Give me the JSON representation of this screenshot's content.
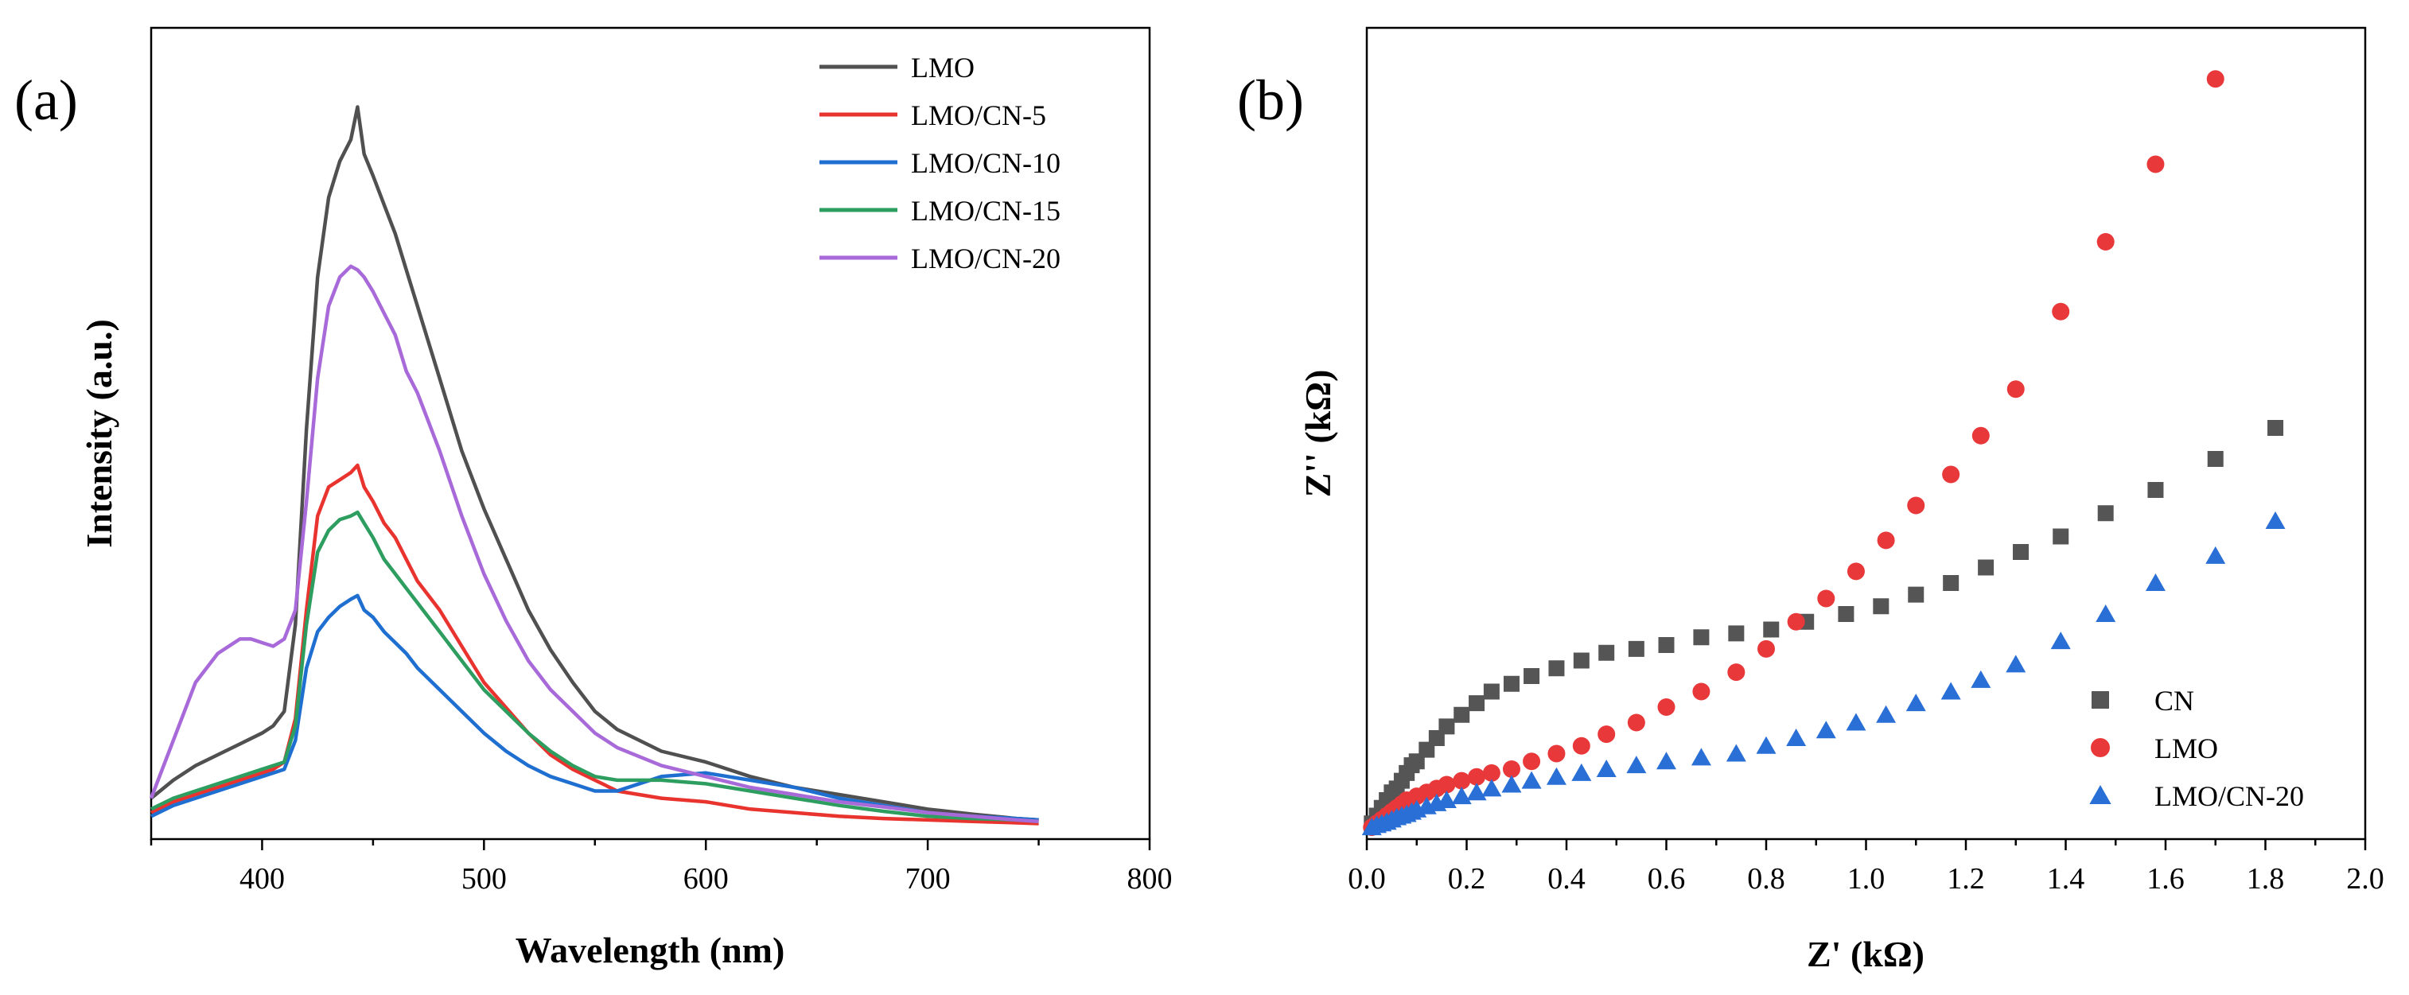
{
  "chart_data": [
    {
      "panel": "(a)",
      "type": "line",
      "xlabel": "Wavelength (nm)",
      "ylabel": "Intensity (a.u.)",
      "xlim": [
        350,
        800
      ],
      "ylim": [
        0,
        1
      ],
      "xticks": [
        400,
        500,
        600,
        700,
        800
      ],
      "yticks_shown": false,
      "legend": "top-right",
      "series": [
        {
          "name": "LMO",
          "color": "#505050",
          "x": [
            350,
            360,
            370,
            380,
            390,
            400,
            405,
            410,
            415,
            420,
            425,
            430,
            435,
            440,
            443,
            446,
            450,
            455,
            460,
            465,
            470,
            480,
            490,
            500,
            510,
            520,
            530,
            540,
            550,
            560,
            580,
            600,
            620,
            640,
            660,
            680,
            700,
            720,
            740,
            750
          ],
          "y": [
            0.04,
            0.065,
            0.085,
            0.1,
            0.115,
            0.13,
            0.14,
            0.16,
            0.28,
            0.55,
            0.76,
            0.87,
            0.92,
            0.95,
            0.995,
            0.93,
            0.9,
            0.86,
            0.82,
            0.77,
            0.72,
            0.62,
            0.52,
            0.44,
            0.37,
            0.3,
            0.245,
            0.2,
            0.16,
            0.135,
            0.105,
            0.09,
            0.07,
            0.055,
            0.045,
            0.035,
            0.025,
            0.018,
            0.012,
            0.01
          ]
        },
        {
          "name": "LMO/CN-5",
          "color": "#e8332f",
          "x": [
            350,
            360,
            370,
            380,
            390,
            400,
            405,
            410,
            415,
            420,
            425,
            430,
            435,
            440,
            443,
            446,
            450,
            455,
            460,
            465,
            470,
            480,
            490,
            500,
            510,
            520,
            530,
            540,
            550,
            560,
            580,
            600,
            620,
            640,
            660,
            680,
            700,
            720,
            740,
            750
          ],
          "y": [
            0.02,
            0.035,
            0.045,
            0.055,
            0.065,
            0.075,
            0.08,
            0.09,
            0.15,
            0.3,
            0.43,
            0.47,
            0.48,
            0.49,
            0.5,
            0.47,
            0.45,
            0.42,
            0.4,
            0.37,
            0.34,
            0.3,
            0.25,
            0.2,
            0.165,
            0.13,
            0.1,
            0.08,
            0.065,
            0.05,
            0.04,
            0.035,
            0.025,
            0.02,
            0.015,
            0.012,
            0.01,
            0.008,
            0.006,
            0.005
          ]
        },
        {
          "name": "LMO/CN-10",
          "color": "#1f6fd1",
          "x": [
            350,
            360,
            370,
            380,
            390,
            400,
            405,
            410,
            415,
            420,
            425,
            430,
            435,
            440,
            443,
            446,
            450,
            455,
            460,
            465,
            470,
            480,
            490,
            500,
            510,
            520,
            530,
            540,
            550,
            560,
            580,
            600,
            620,
            640,
            660,
            680,
            700,
            720,
            740,
            750
          ],
          "y": [
            0.015,
            0.03,
            0.04,
            0.05,
            0.06,
            0.07,
            0.075,
            0.08,
            0.12,
            0.22,
            0.27,
            0.29,
            0.305,
            0.315,
            0.32,
            0.3,
            0.29,
            0.27,
            0.255,
            0.24,
            0.22,
            0.19,
            0.16,
            0.13,
            0.105,
            0.085,
            0.07,
            0.06,
            0.05,
            0.05,
            0.07,
            0.075,
            0.065,
            0.055,
            0.04,
            0.03,
            0.02,
            0.015,
            0.012,
            0.01
          ]
        },
        {
          "name": "LMO/CN-15",
          "color": "#2e9e60",
          "x": [
            350,
            360,
            370,
            380,
            390,
            400,
            405,
            410,
            415,
            420,
            425,
            430,
            435,
            440,
            443,
            446,
            450,
            455,
            460,
            465,
            470,
            480,
            490,
            500,
            510,
            520,
            530,
            540,
            550,
            560,
            580,
            600,
            620,
            640,
            660,
            680,
            700,
            720,
            740,
            750
          ],
          "y": [
            0.025,
            0.04,
            0.05,
            0.06,
            0.07,
            0.08,
            0.085,
            0.09,
            0.14,
            0.28,
            0.38,
            0.41,
            0.425,
            0.43,
            0.435,
            0.42,
            0.4,
            0.37,
            0.35,
            0.33,
            0.31,
            0.27,
            0.23,
            0.19,
            0.16,
            0.13,
            0.105,
            0.085,
            0.07,
            0.065,
            0.065,
            0.06,
            0.05,
            0.04,
            0.03,
            0.022,
            0.015,
            0.012,
            0.01,
            0.008
          ]
        },
        {
          "name": "LMO/CN-20",
          "color": "#a86ad9",
          "x": [
            350,
            360,
            370,
            380,
            390,
            395,
            400,
            405,
            410,
            415,
            420,
            425,
            430,
            435,
            440,
            443,
            446,
            450,
            455,
            460,
            465,
            470,
            480,
            490,
            500,
            510,
            520,
            530,
            540,
            550,
            560,
            580,
            600,
            620,
            640,
            660,
            680,
            700,
            720,
            740,
            750
          ],
          "y": [
            0.04,
            0.12,
            0.2,
            0.24,
            0.26,
            0.26,
            0.255,
            0.25,
            0.26,
            0.3,
            0.45,
            0.62,
            0.72,
            0.76,
            0.775,
            0.77,
            0.76,
            0.74,
            0.71,
            0.68,
            0.63,
            0.6,
            0.52,
            0.43,
            0.35,
            0.285,
            0.23,
            0.19,
            0.16,
            0.13,
            0.11,
            0.085,
            0.07,
            0.055,
            0.045,
            0.035,
            0.028,
            0.02,
            0.015,
            0.01,
            0.008
          ]
        }
      ],
      "legend_entries": [
        "LMO",
        "LMO/CN-5",
        "LMO/CN-10",
        "LMO/CN-15",
        "LMO/CN-20"
      ]
    },
    {
      "panel": "(b)",
      "type": "scatter",
      "xlabel": "Z' (kΩ)",
      "ylabel": "Z'' (kΩ)",
      "xlim": [
        0.0,
        2.0
      ],
      "ylim": [
        0,
        1
      ],
      "xticks": [
        "0.0",
        "0.2",
        "0.4",
        "0.6",
        "0.8",
        "1.0",
        "1.2",
        "1.4",
        "1.6",
        "1.8",
        "2.0"
      ],
      "yticks_shown": false,
      "legend": "bottom-right",
      "series": [
        {
          "name": "CN",
          "color": "#555555",
          "marker": "square",
          "x": [
            0.01,
            0.02,
            0.03,
            0.04,
            0.05,
            0.06,
            0.07,
            0.08,
            0.09,
            0.1,
            0.12,
            0.14,
            0.16,
            0.19,
            0.22,
            0.25,
            0.29,
            0.33,
            0.38,
            0.43,
            0.48,
            0.54,
            0.6,
            0.67,
            0.74,
            0.81,
            0.88,
            0.96,
            1.03,
            1.1,
            1.17,
            1.24,
            1.31,
            1.39,
            1.48,
            1.58,
            1.7,
            1.82
          ],
          "y": [
            0.01,
            0.02,
            0.03,
            0.04,
            0.05,
            0.055,
            0.065,
            0.075,
            0.085,
            0.09,
            0.105,
            0.12,
            0.135,
            0.15,
            0.165,
            0.18,
            0.19,
            0.2,
            0.21,
            0.22,
            0.23,
            0.235,
            0.24,
            0.25,
            0.255,
            0.26,
            0.27,
            0.28,
            0.29,
            0.305,
            0.32,
            0.34,
            0.36,
            0.38,
            0.41,
            0.44,
            0.48,
            0.52
          ]
        },
        {
          "name": "LMO",
          "color": "#e8383a",
          "marker": "circle",
          "x": [
            0.01,
            0.02,
            0.03,
            0.04,
            0.05,
            0.06,
            0.07,
            0.08,
            0.09,
            0.1,
            0.12,
            0.14,
            0.16,
            0.19,
            0.22,
            0.25,
            0.29,
            0.33,
            0.38,
            0.43,
            0.48,
            0.54,
            0.6,
            0.67,
            0.74,
            0.8,
            0.86,
            0.92,
            0.98,
            1.04,
            1.1,
            1.17,
            1.23,
            1.3,
            1.39,
            1.48,
            1.58,
            1.7
          ],
          "y": [
            0.005,
            0.01,
            0.015,
            0.02,
            0.025,
            0.03,
            0.035,
            0.04,
            0.04,
            0.045,
            0.05,
            0.055,
            0.06,
            0.065,
            0.07,
            0.075,
            0.08,
            0.09,
            0.1,
            0.11,
            0.125,
            0.14,
            0.16,
            0.18,
            0.205,
            0.235,
            0.27,
            0.3,
            0.335,
            0.375,
            0.42,
            0.46,
            0.51,
            0.57,
            0.67,
            0.76,
            0.86,
            0.97
          ]
        },
        {
          "name": "LMO/CN-20",
          "color": "#2a6fd6",
          "marker": "triangle",
          "x": [
            0.01,
            0.02,
            0.03,
            0.04,
            0.05,
            0.06,
            0.07,
            0.08,
            0.09,
            0.1,
            0.12,
            0.14,
            0.16,
            0.19,
            0.22,
            0.25,
            0.29,
            0.33,
            0.38,
            0.43,
            0.48,
            0.54,
            0.6,
            0.67,
            0.74,
            0.8,
            0.86,
            0.92,
            0.98,
            1.04,
            1.1,
            1.17,
            1.23,
            1.3,
            1.39,
            1.48,
            1.58,
            1.7,
            1.82
          ],
          "y": [
            0.005,
            0.008,
            0.01,
            0.012,
            0.015,
            0.018,
            0.02,
            0.022,
            0.025,
            0.028,
            0.032,
            0.036,
            0.04,
            0.045,
            0.05,
            0.055,
            0.06,
            0.065,
            0.07,
            0.075,
            0.08,
            0.085,
            0.09,
            0.095,
            0.1,
            0.11,
            0.12,
            0.13,
            0.14,
            0.15,
            0.165,
            0.18,
            0.195,
            0.215,
            0.245,
            0.28,
            0.32,
            0.355,
            0.4
          ]
        }
      ],
      "legend_entries": [
        "CN",
        "LMO",
        "LMO/CN-20"
      ]
    }
  ]
}
